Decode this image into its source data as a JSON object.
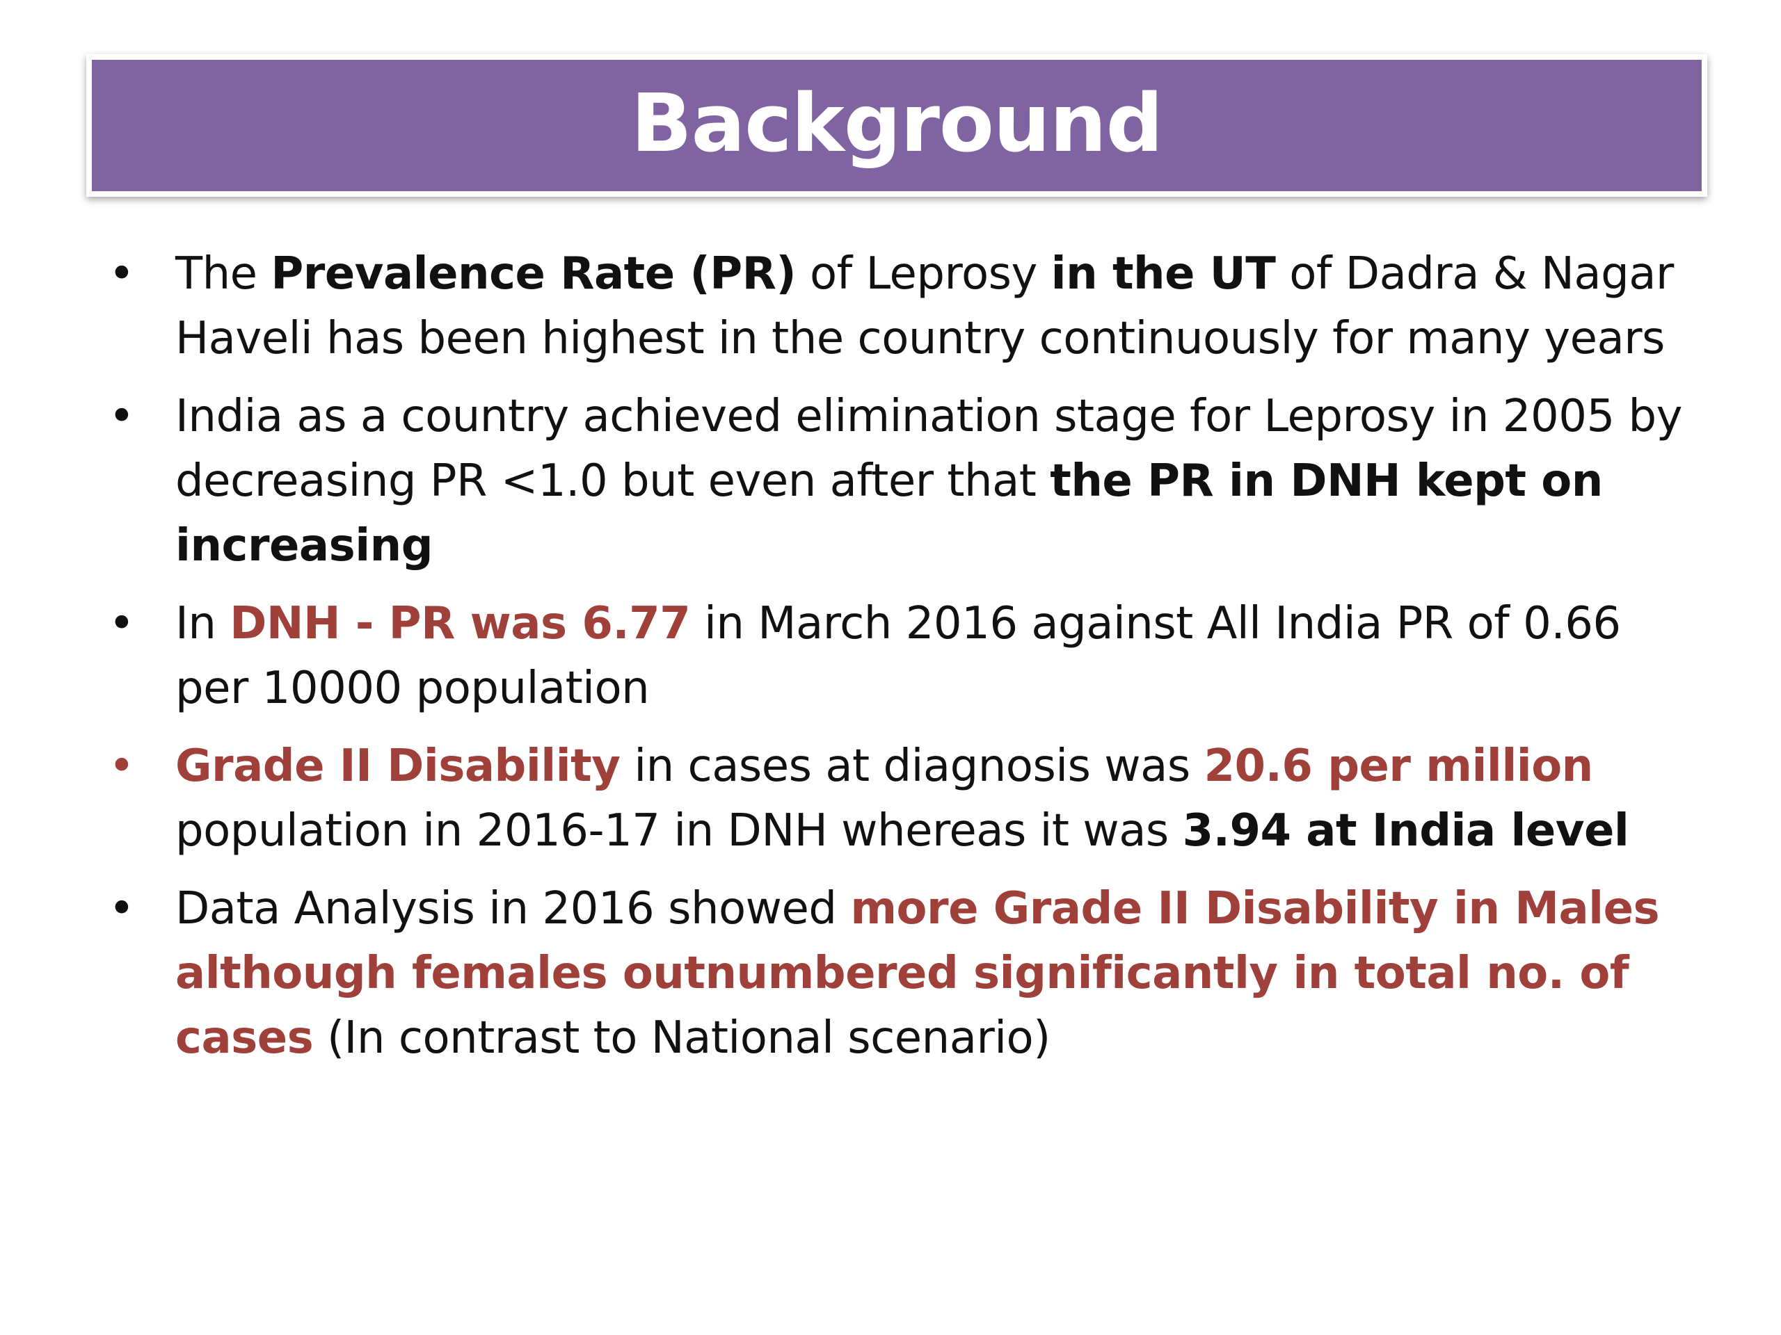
{
  "title": "Background",
  "bullets": [
    {
      "marker": "•",
      "segments": [
        "The ",
        "Prevalence Rate (PR)",
        " of Leprosy ",
        "in the UT",
        " of Dadra & Nagar Haveli has been highest in the country continuously for many years"
      ]
    },
    {
      "marker": "•",
      "segments": [
        "India as a country achieved elimination stage for Leprosy in 2005 by decreasing PR <1.0 but even after that ",
        "the PR in DNH kept on increasing"
      ]
    },
    {
      "marker": "•",
      "segments": [
        "In ",
        "DNH - PR was 6.77",
        " in March 2016 against All India PR of 0.66 per 10000 population"
      ]
    },
    {
      "marker": "•",
      "segments": [
        "Grade II Disability",
        " in cases at diagnosis was ",
        "20.6 per million",
        " population in 2016-17 in DNH whereas it was ",
        "3.94 at India level"
      ]
    },
    {
      "marker": "•",
      "segments": [
        "Data Analysis in 2016 showed ",
        "more Grade II Disability in Males although females outnumbered significantly in total no. of cases",
        " (In contrast to National scenario)"
      ]
    }
  ],
  "colors": {
    "title_bar": "#8064a2",
    "title_text": "#ffffff",
    "highlight_red": "#a0403b",
    "body_text": "#111111"
  }
}
